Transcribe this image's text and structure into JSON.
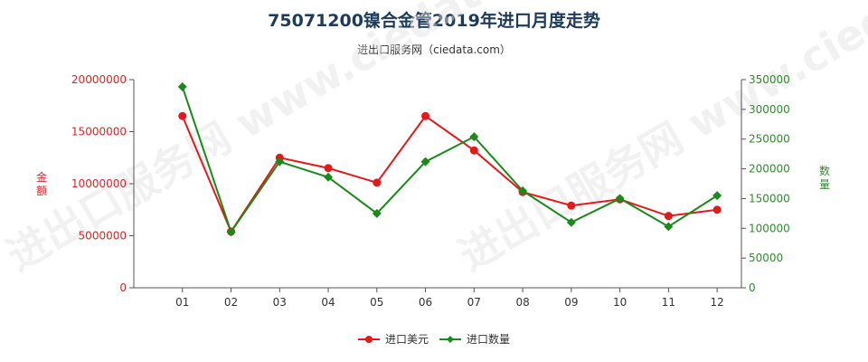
{
  "title": "75071200镍合金管2019年进口月度走势",
  "subtitle": "进出口服务网（ciedata.com）",
  "watermark": "进出口服务网 www.ciedata.com",
  "colors": {
    "amount": "#e31a1c",
    "quantity": "#1a8a1a",
    "axis_left": "#d62728",
    "axis_right": "#2e8b2e",
    "title": "#1f3b5a"
  },
  "chart_data": {
    "type": "line",
    "categories": [
      "01",
      "02",
      "03",
      "04",
      "05",
      "06",
      "07",
      "08",
      "09",
      "10",
      "11",
      "12"
    ],
    "series": [
      {
        "name": "进口美元",
        "axis": "left",
        "values": [
          16500000,
          5400000,
          12500000,
          11500000,
          10100000,
          16500000,
          13200000,
          9200000,
          7900000,
          8500000,
          6900000,
          7500000
        ]
      },
      {
        "name": "进口数量",
        "axis": "right",
        "values": [
          338000,
          94000,
          212000,
          186000,
          125000,
          212000,
          254000,
          163000,
          110000,
          150000,
          103000,
          155000
        ]
      }
    ],
    "y_left": {
      "label": "金额",
      "min": 0,
      "max": 20000000,
      "ticks": [
        "0",
        "5000000",
        "10000000",
        "15000000",
        "20000000"
      ]
    },
    "y_right": {
      "label": "数量",
      "min": 0,
      "max": 350000,
      "ticks": [
        "0",
        "50000",
        "100000",
        "150000",
        "200000",
        "250000",
        "300000",
        "350000"
      ]
    },
    "legend_position": "bottom-center",
    "grid": false
  }
}
